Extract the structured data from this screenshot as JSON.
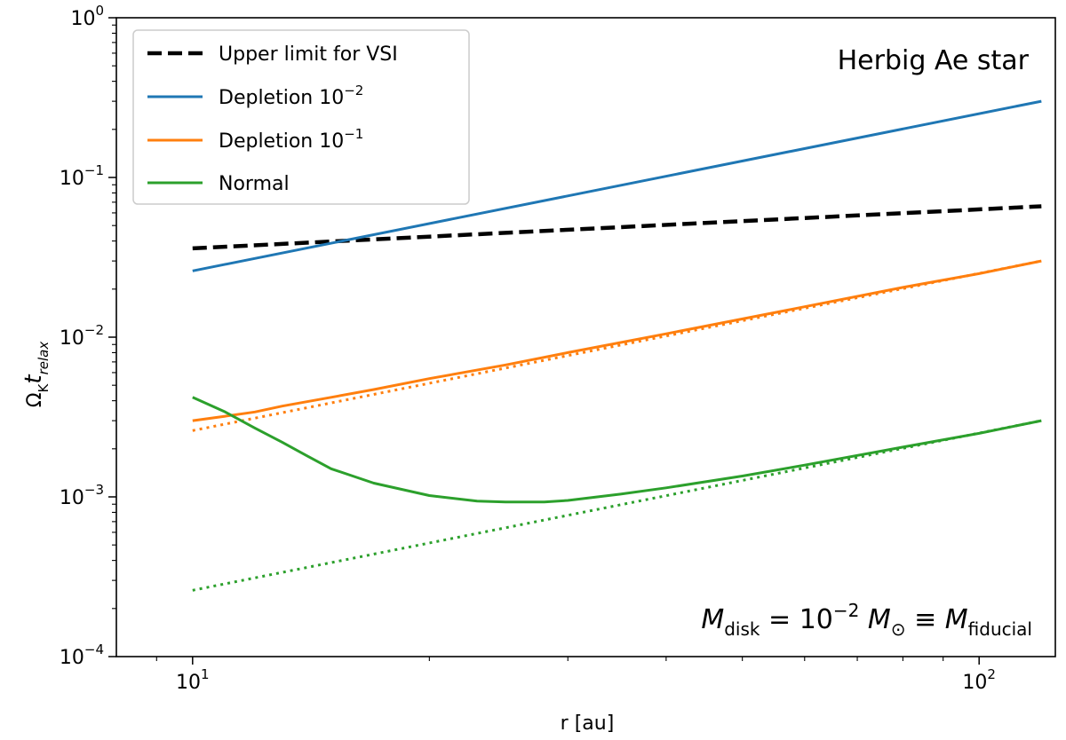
{
  "chart_data": {
    "type": "line",
    "xscale": "log",
    "yscale": "log",
    "xlim": [
      8.0,
      125.0
    ],
    "ylim": [
      0.0001,
      1.0
    ],
    "xlabel": "r [au]",
    "ylabel": {
      "base": "Ω",
      "base_sub": "K",
      "italic": "t",
      "italic_sub": "relax"
    },
    "x_ticks": [
      {
        "value": 10,
        "base": "10",
        "exp": "1"
      },
      {
        "value": 100,
        "base": "10",
        "exp": "2"
      }
    ],
    "y_ticks": [
      {
        "value": 0.0001,
        "base": "10",
        "exp": "−4"
      },
      {
        "value": 0.001,
        "base": "10",
        "exp": "−3"
      },
      {
        "value": 0.01,
        "base": "10",
        "exp": "−2"
      },
      {
        "value": 0.1,
        "base": "10",
        "exp": "−1"
      },
      {
        "value": 1,
        "base": "10",
        "exp": "0"
      }
    ],
    "legend": {
      "position": "upper left",
      "entries": [
        {
          "text": "Upper limit for VSI",
          "exp": ""
        },
        {
          "text": "Depletion 10",
          "exp": "−2"
        },
        {
          "text": "Depletion 10",
          "exp": "−1"
        },
        {
          "text": "Normal",
          "exp": ""
        }
      ]
    },
    "annotations": {
      "top_right": "Herbig Ae star",
      "bottom_right": {
        "m": "M",
        "disk_sub": "disk",
        "eq": " = 10",
        "exp": "−2",
        "msun": " M",
        "sun": "⊙",
        "equiv": " ≡ ",
        "m2": "M",
        "fid_sub": "fiducial"
      }
    },
    "series": [
      {
        "name": "Upper limit for VSI",
        "color": "#000000",
        "style": "dashed",
        "x": [
          10,
          120
        ],
        "y": [
          0.036,
          0.066
        ]
      },
      {
        "name": "Depletion 10−2",
        "color": "#1f77b4",
        "style": "solid",
        "x": [
          10,
          120
        ],
        "y": [
          0.026,
          0.3
        ]
      },
      {
        "name": "Depletion 10−1",
        "color": "#ff7f0e",
        "style": "solid",
        "x": [
          10,
          11,
          12,
          13,
          15,
          17,
          20,
          25,
          30,
          40,
          60,
          80,
          100,
          120
        ],
        "y": [
          0.003,
          0.0032,
          0.0034,
          0.0037,
          0.0042,
          0.0047,
          0.0055,
          0.0067,
          0.008,
          0.0105,
          0.0155,
          0.0205,
          0.025,
          0.03
        ]
      },
      {
        "color": "#ff7f0e",
        "style": "dotted",
        "x": [
          10,
          120
        ],
        "y": [
          0.0026,
          0.03
        ]
      },
      {
        "name": "Normal",
        "color": "#2ca02c",
        "style": "solid",
        "x": [
          10,
          11,
          12,
          13,
          14,
          15,
          17,
          20,
          23,
          25,
          28,
          30,
          35,
          40,
          50,
          60,
          80,
          100,
          120
        ],
        "y": [
          0.0042,
          0.0034,
          0.0027,
          0.0022,
          0.0018,
          0.0015,
          0.00122,
          0.00102,
          0.00094,
          0.00093,
          0.00093,
          0.00095,
          0.00104,
          0.00114,
          0.00135,
          0.00158,
          0.00205,
          0.0025,
          0.003
        ]
      },
      {
        "color": "#2ca02c",
        "style": "dotted",
        "x": [
          10,
          120
        ],
        "y": [
          0.00026,
          0.003
        ]
      }
    ]
  }
}
